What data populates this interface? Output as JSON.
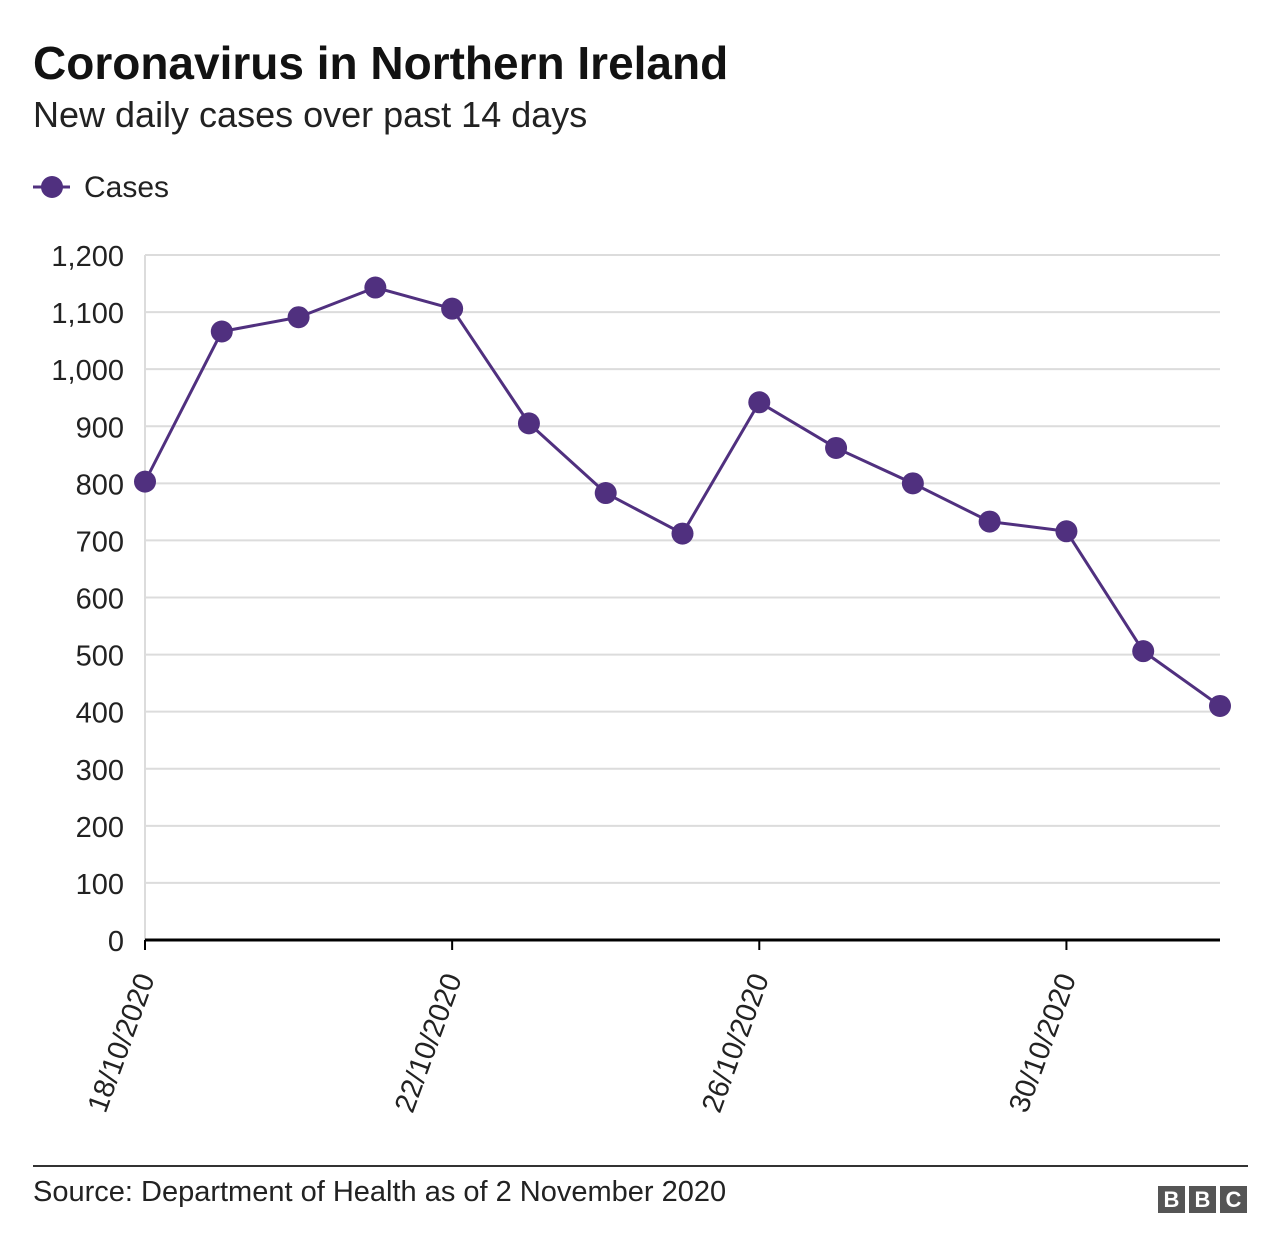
{
  "header": {
    "title": "Coronavirus in Northern Ireland",
    "subtitle": "New daily cases over past 14 days"
  },
  "footer": {
    "source": "Source: Department of Health as of 2 November 2020",
    "logo": [
      "B",
      "B",
      "C"
    ]
  },
  "colors": {
    "series": "#50307f",
    "grid": "#dcdcdc",
    "axis": "#000000",
    "text": "#222222"
  },
  "chart_data": {
    "type": "line",
    "title": "Coronavirus in Northern Ireland",
    "subtitle": "New daily cases over past 14 days",
    "xlabel": "",
    "ylabel": "",
    "ylim": [
      0,
      1200
    ],
    "y_ticks": [
      0,
      100,
      200,
      300,
      400,
      500,
      600,
      700,
      800,
      900,
      1000,
      1100,
      1200
    ],
    "y_tick_labels": [
      "0",
      "100",
      "200",
      "300",
      "400",
      "500",
      "600",
      "700",
      "800",
      "900",
      "1,000",
      "1,100",
      "1,200"
    ],
    "x_tick_labels": [
      "18/10/2020",
      "22/10/2020",
      "26/10/2020",
      "30/10/2020"
    ],
    "x_tick_dates": [
      "2020-10-18",
      "2020-10-22",
      "2020-10-26",
      "2020-10-30"
    ],
    "grid": true,
    "legend": "top-left",
    "series": [
      {
        "name": "Cases",
        "x": [
          "2020-10-18",
          "2020-10-19",
          "2020-10-20",
          "2020-10-21",
          "2020-10-22",
          "2020-10-23",
          "2020-10-24",
          "2020-10-25",
          "2020-10-26",
          "2020-10-27",
          "2020-10-28",
          "2020-10-29",
          "2020-10-30",
          "2020-10-31",
          "2020-11-01"
        ],
        "values": [
          803,
          1066,
          1091,
          1143,
          1106,
          905,
          783,
          712,
          942,
          862,
          800,
          733,
          716,
          506,
          410
        ]
      }
    ]
  }
}
